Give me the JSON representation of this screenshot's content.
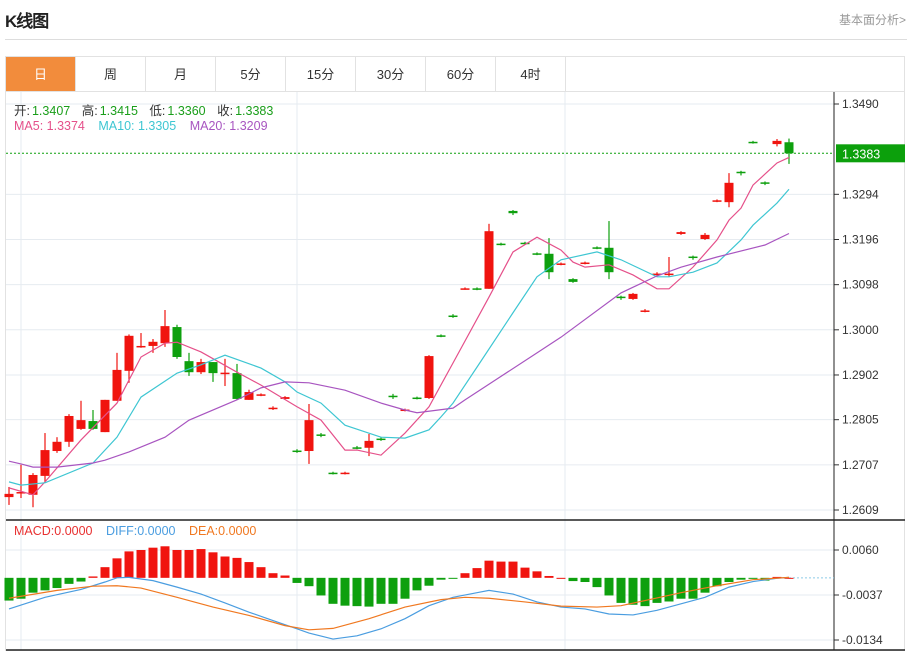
{
  "header": {
    "title": "K线图",
    "fundamental_link": "基本面分析>"
  },
  "tabs": [
    {
      "label": "日",
      "active": true
    },
    {
      "label": "周"
    },
    {
      "label": "月"
    },
    {
      "label": "5分"
    },
    {
      "label": "15分"
    },
    {
      "label": "30分"
    },
    {
      "label": "60分"
    },
    {
      "label": "4时"
    }
  ],
  "info": {
    "open_label": "开:",
    "open": "1.3407",
    "high_label": "高:",
    "high": "1.3415",
    "low_label": "低:",
    "low": "1.3360",
    "close_label": "收:",
    "close": "1.3383",
    "ma5_label": "MA5: 1.3374",
    "ma10_label": "MA10: 1.3305",
    "ma20_label": "MA20: 1.3209",
    "macd_label": "MACD:0.0000",
    "diff_label": "DIFF:0.0000",
    "dea_label": "DEA:0.0000"
  },
  "colors": {
    "up": "#f0140f",
    "down": "#0ea00e",
    "ma5": "#e5508a",
    "ma10": "#3ec6d2",
    "ma20": "#a855c0",
    "diff": "#4a9de0",
    "dea": "#f07820",
    "macd_text": "#e83030",
    "value_green": "#1a9e1a",
    "active_tab": "#f28c3c"
  },
  "chart_data": [
    {
      "type": "candlestick",
      "title": "",
      "price_ticks": [
        "1.3490",
        "1.3294",
        "1.3196",
        "1.3098",
        "1.3000",
        "1.2902",
        "1.2805",
        "1.2707",
        "1.2609"
      ],
      "ylim": [
        1.2609,
        1.349
      ],
      "grid": true,
      "last_price": "1.3383",
      "candles_ohlc": [
        [
          1.2637,
          1.2659,
          1.262,
          1.2644
        ],
        [
          1.2648,
          1.2707,
          1.2635,
          1.2648
        ],
        [
          1.2642,
          1.2689,
          1.2615,
          1.2685
        ],
        [
          1.2683,
          1.2776,
          1.2668,
          1.2739
        ],
        [
          1.2737,
          1.2767,
          1.2733,
          1.2757
        ],
        [
          1.2757,
          1.2817,
          1.2746,
          1.2813
        ],
        [
          1.2785,
          1.2846,
          1.2783,
          1.2804
        ],
        [
          1.2802,
          1.2826,
          1.2783,
          1.2785
        ],
        [
          1.2778,
          1.2848,
          1.2778,
          1.2848
        ],
        [
          1.2846,
          1.295,
          1.2846,
          1.2913
        ],
        [
          1.2911,
          1.299,
          1.2885,
          1.2987
        ],
        [
          1.2963,
          1.2993,
          1.2961,
          1.2965
        ],
        [
          1.2965,
          1.298,
          1.295,
          1.2974
        ],
        [
          1.2971,
          1.3043,
          1.2963,
          1.3008
        ],
        [
          1.3006,
          1.3011,
          1.2937,
          1.2941
        ],
        [
          1.2932,
          1.295,
          1.29,
          1.2908
        ],
        [
          1.2908,
          1.2937,
          1.2904,
          1.293
        ],
        [
          1.293,
          1.293,
          1.2887,
          1.2906
        ],
        [
          1.2906,
          1.2937,
          1.2878,
          1.2907
        ],
        [
          1.2906,
          1.2926,
          1.2848,
          1.285
        ],
        [
          1.2848,
          1.287,
          1.2848,
          1.2865
        ],
        [
          1.2858,
          1.2862,
          1.2856,
          1.286
        ],
        [
          1.2829,
          1.2834,
          1.2826,
          1.2831
        ],
        [
          1.285,
          1.2856,
          1.2848,
          1.2854
        ],
        [
          1.2738,
          1.2741,
          1.2733,
          1.2736
        ],
        [
          1.2737,
          1.2839,
          1.2709,
          1.2804
        ],
        [
          1.2773,
          1.2776,
          1.2767,
          1.2771
        ],
        [
          1.269,
          1.2692,
          1.2686,
          1.2688
        ],
        [
          1.2688,
          1.2692,
          1.2686,
          1.269
        ],
        [
          1.2745,
          1.2748,
          1.2741,
          1.2743
        ],
        [
          1.2744,
          1.2774,
          1.2726,
          1.2759
        ],
        [
          1.2764,
          1.2767,
          1.2759,
          1.2762
        ],
        [
          1.2857,
          1.2861,
          1.285,
          1.2855
        ],
        [
          1.2825,
          1.2829,
          1.2823,
          1.2827
        ],
        [
          1.2853,
          1.2855,
          1.2849,
          1.2851
        ],
        [
          1.2852,
          1.2945,
          1.285,
          1.2943
        ],
        [
          1.2988,
          1.299,
          1.2984,
          1.2986
        ],
        [
          1.3031,
          1.3034,
          1.3026,
          1.3029
        ],
        [
          1.3088,
          1.3092,
          1.3087,
          1.309
        ],
        [
          1.309,
          1.3092,
          1.3086,
          1.3088
        ],
        [
          1.3089,
          1.323,
          1.3089,
          1.3214
        ],
        [
          1.3187,
          1.3189,
          1.3183,
          1.3185
        ],
        [
          1.3258,
          1.326,
          1.3249,
          1.3253
        ],
        [
          1.3189,
          1.3191,
          1.3185,
          1.3187
        ],
        [
          1.3166,
          1.3168,
          1.3162,
          1.3164
        ],
        [
          1.3165,
          1.3199,
          1.311,
          1.3125
        ],
        [
          1.3142,
          1.3146,
          1.314,
          1.3144
        ],
        [
          1.311,
          1.3112,
          1.3102,
          1.3104
        ],
        [
          1.3144,
          1.3148,
          1.3142,
          1.3146
        ],
        [
          1.3179,
          1.3181,
          1.3175,
          1.3177
        ],
        [
          1.3178,
          1.3236,
          1.311,
          1.3125
        ],
        [
          1.3072,
          1.3074,
          1.3065,
          1.307
        ],
        [
          1.3067,
          1.308,
          1.3065,
          1.3078
        ],
        [
          1.304,
          1.3045,
          1.3038,
          1.3042
        ],
        [
          1.312,
          1.3125,
          1.3118,
          1.3122
        ],
        [
          1.312,
          1.3158,
          1.3115,
          1.3122
        ],
        [
          1.3208,
          1.3214,
          1.3206,
          1.3212
        ],
        [
          1.3159,
          1.3161,
          1.3152,
          1.3157
        ],
        [
          1.3197,
          1.321,
          1.3195,
          1.3206
        ],
        [
          1.3279,
          1.3283,
          1.3277,
          1.3281
        ],
        [
          1.3277,
          1.334,
          1.3266,
          1.3319
        ],
        [
          1.3343,
          1.3345,
          1.3335,
          1.3341
        ],
        [
          1.3408,
          1.341,
          1.3404,
          1.3406
        ],
        [
          1.332,
          1.3322,
          1.3314,
          1.3318
        ],
        [
          1.3403,
          1.3414,
          1.3398,
          1.341
        ],
        [
          1.3407,
          1.3415,
          1.336,
          1.3383
        ]
      ],
      "ma_series": [
        {
          "name": "MA5",
          "points": [
            [
              0,
              1.2657
            ],
            [
              2,
              1.2642
            ],
            [
              3,
              1.267
            ],
            [
              6,
              1.2761
            ],
            [
              9,
              1.2841
            ],
            [
              11,
              1.2941
            ],
            [
              13,
              1.2971
            ],
            [
              14,
              1.2973
            ],
            [
              16,
              1.2952
            ],
            [
              19,
              1.2908
            ],
            [
              21,
              1.288
            ],
            [
              24,
              1.2833
            ],
            [
              26,
              1.2804
            ],
            [
              28,
              1.2739
            ],
            [
              29,
              1.2739
            ],
            [
              31,
              1.2728
            ],
            [
              33,
              1.2776
            ],
            [
              35,
              1.2833
            ],
            [
              37,
              1.2928
            ],
            [
              40,
              1.3071
            ],
            [
              42,
              1.3169
            ],
            [
              44,
              1.3201
            ],
            [
              46,
              1.3173
            ],
            [
              47,
              1.3147
            ],
            [
              48,
              1.3136
            ],
            [
              50,
              1.3141
            ],
            [
              52,
              1.3119
            ],
            [
              54,
              1.3089
            ],
            [
              55,
              1.3089
            ],
            [
              57,
              1.3136
            ],
            [
              59,
              1.3195
            ],
            [
              60,
              1.3238
            ],
            [
              61,
              1.3264
            ],
            [
              62,
              1.3314
            ],
            [
              64,
              1.3362
            ],
            [
              65,
              1.3374
            ]
          ]
        },
        {
          "name": "MA10",
          "points": [
            [
              0,
              1.267
            ],
            [
              1,
              1.2663
            ],
            [
              3,
              1.2668
            ],
            [
              7,
              1.2711
            ],
            [
              9,
              1.2767
            ],
            [
              11,
              1.2854
            ],
            [
              14,
              1.2906
            ],
            [
              16,
              1.2924
            ],
            [
              18,
              1.2945
            ],
            [
              21,
              1.2917
            ],
            [
              23,
              1.2887
            ],
            [
              24,
              1.2865
            ],
            [
              26,
              1.2841
            ],
            [
              28,
              1.2793
            ],
            [
              31,
              1.2767
            ],
            [
              33,
              1.2765
            ],
            [
              35,
              1.2783
            ],
            [
              36,
              1.2811
            ],
            [
              37,
              1.2841
            ],
            [
              39,
              1.2919
            ],
            [
              42,
              1.3037
            ],
            [
              44,
              1.3115
            ],
            [
              46,
              1.3152
            ],
            [
              49,
              1.3169
            ],
            [
              51,
              1.3152
            ],
            [
              54,
              1.3115
            ],
            [
              55,
              1.3115
            ],
            [
              57,
              1.3125
            ],
            [
              59,
              1.3145
            ],
            [
              61,
              1.3195
            ],
            [
              62,
              1.3227
            ],
            [
              64,
              1.3275
            ],
            [
              65,
              1.3305
            ]
          ]
        },
        {
          "name": "MA20",
          "points": [
            [
              0,
              1.2715
            ],
            [
              1,
              1.2709
            ],
            [
              2,
              1.2702
            ],
            [
              4,
              1.2702
            ],
            [
              7,
              1.2711
            ],
            [
              8,
              1.2717
            ],
            [
              10,
              1.2735
            ],
            [
              13,
              1.2767
            ],
            [
              15,
              1.2804
            ],
            [
              19,
              1.2848
            ],
            [
              21,
              1.2874
            ],
            [
              23,
              1.2887
            ],
            [
              25,
              1.2885
            ],
            [
              28,
              1.2869
            ],
            [
              31,
              1.2841
            ],
            [
              33,
              1.2826
            ],
            [
              34,
              1.282
            ],
            [
              37,
              1.283
            ],
            [
              38,
              1.2848
            ],
            [
              44,
              1.295
            ],
            [
              46,
              1.2984
            ],
            [
              51,
              1.308
            ],
            [
              54,
              1.3117
            ],
            [
              56,
              1.3136
            ],
            [
              59,
              1.3158
            ],
            [
              63,
              1.3184
            ],
            [
              65,
              1.3209
            ]
          ]
        }
      ]
    },
    {
      "type": "bar+line",
      "title": "",
      "ticks": [
        "0.0060",
        "-0.0037",
        "-0.0134"
      ],
      "ylim": [
        -0.0134,
        0.006
      ],
      "macd": [
        -0.0049,
        -0.0045,
        -0.0032,
        -0.0027,
        -0.0022,
        -0.0013,
        -0.0008,
        0.0003,
        0.0023,
        0.0042,
        0.0057,
        0.006,
        0.0065,
        0.0068,
        0.006,
        0.006,
        0.0062,
        0.0055,
        0.0046,
        0.0043,
        0.0034,
        0.0023,
        0.001,
        0.0005,
        -0.0011,
        -0.0018,
        -0.0038,
        -0.0056,
        -0.006,
        -0.0061,
        -0.0062,
        -0.0056,
        -0.0056,
        -0.0045,
        -0.0027,
        -0.0017,
        -0.0004,
        -0.0002,
        0.001,
        0.0021,
        0.0037,
        0.0035,
        0.0035,
        0.0022,
        0.0014,
        0.0004,
        0.0,
        -0.0007,
        -0.0009,
        -0.002,
        -0.0038,
        -0.0054,
        -0.0058,
        -0.0061,
        -0.0054,
        -0.0051,
        -0.0045,
        -0.0045,
        -0.0032,
        -0.0018,
        -0.0009,
        -0.0004,
        -0.0002,
        -0.0006,
        0.0002,
        0.0
      ],
      "diff": [
        [
          0,
          -0.0067
        ],
        [
          3,
          -0.0042
        ],
        [
          6,
          -0.0025
        ],
        [
          8,
          -0.0009
        ],
        [
          9,
          0.0
        ],
        [
          10,
          0.0001
        ],
        [
          12,
          -0.0006
        ],
        [
          14,
          -0.002
        ],
        [
          16,
          -0.0035
        ],
        [
          18,
          -0.0054
        ],
        [
          20,
          -0.0074
        ],
        [
          22,
          -0.0092
        ],
        [
          24,
          -0.011
        ],
        [
          25,
          -0.0119
        ],
        [
          27,
          -0.0132
        ],
        [
          29,
          -0.0125
        ],
        [
          31,
          -0.011
        ],
        [
          33,
          -0.0088
        ],
        [
          35,
          -0.006
        ],
        [
          37,
          -0.0042
        ],
        [
          39,
          -0.0032
        ],
        [
          40,
          -0.0027
        ],
        [
          42,
          -0.0035
        ],
        [
          44,
          -0.0052
        ],
        [
          46,
          -0.0063
        ],
        [
          48,
          -0.0067
        ],
        [
          50,
          -0.0078
        ],
        [
          52,
          -0.008
        ],
        [
          54,
          -0.007
        ],
        [
          56,
          -0.0056
        ],
        [
          58,
          -0.0042
        ],
        [
          60,
          -0.002
        ],
        [
          62,
          -0.0008
        ],
        [
          64,
          -0.0001
        ],
        [
          65,
          0.0001
        ]
      ],
      "dea": [
        [
          0,
          -0.0044
        ],
        [
          4,
          -0.0027
        ],
        [
          7,
          -0.0018
        ],
        [
          9,
          -0.0017
        ],
        [
          11,
          -0.0022
        ],
        [
          14,
          -0.0042
        ],
        [
          17,
          -0.0063
        ],
        [
          20,
          -0.0081
        ],
        [
          23,
          -0.0103
        ],
        [
          25,
          -0.0112
        ],
        [
          27,
          -0.0109
        ],
        [
          30,
          -0.0088
        ],
        [
          33,
          -0.0063
        ],
        [
          36,
          -0.0047
        ],
        [
          38,
          -0.0042
        ],
        [
          40,
          -0.0044
        ],
        [
          43,
          -0.0052
        ],
        [
          46,
          -0.0061
        ],
        [
          49,
          -0.0063
        ],
        [
          51,
          -0.006
        ],
        [
          53,
          -0.0049
        ],
        [
          56,
          -0.0032
        ],
        [
          59,
          -0.0017
        ],
        [
          62,
          -0.0004
        ],
        [
          65,
          0.0001
        ]
      ]
    }
  ]
}
